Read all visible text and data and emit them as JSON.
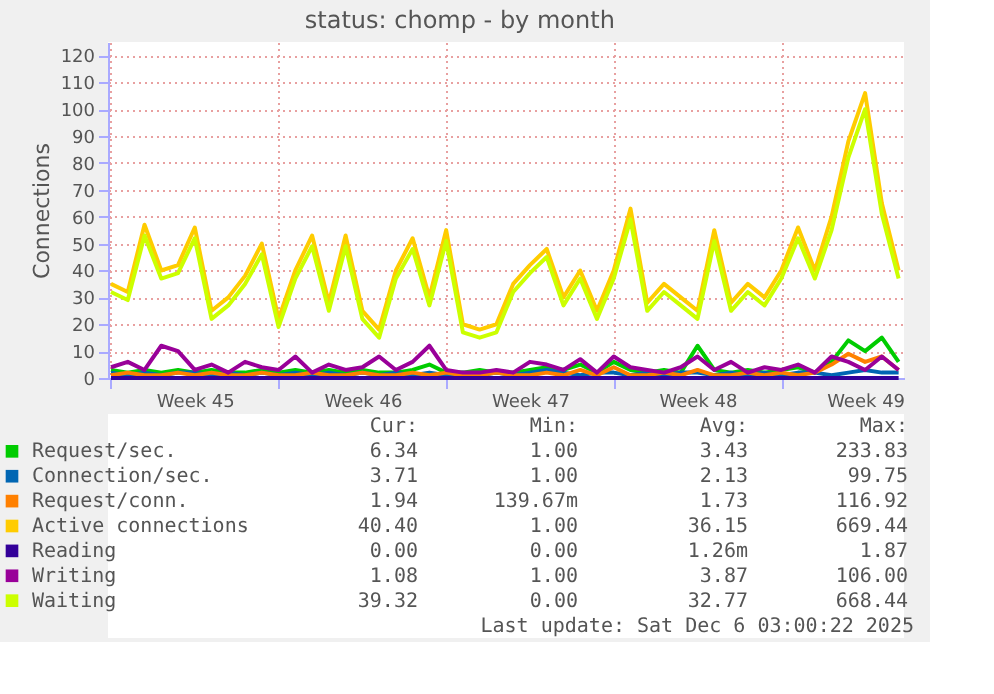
{
  "chart_data": {
    "type": "line",
    "title": "status: chomp - by month",
    "ylabel": "Connections",
    "x": [
      "2025-11-03T00:00",
      "2025-11-03T16:48",
      "2025-11-04T09:36",
      "2025-11-05T02:24",
      "2025-11-05T19:12",
      "2025-11-06T12:00",
      "2025-11-07T04:48",
      "2025-11-07T21:36",
      "2025-11-08T14:24",
      "2025-11-09T07:12",
      "2025-11-10T00:00",
      "2025-11-10T16:48",
      "2025-11-11T09:36",
      "2025-11-12T02:24",
      "2025-11-12T19:12",
      "2025-11-13T12:00",
      "2025-11-14T04:48",
      "2025-11-14T21:36",
      "2025-11-15T14:24",
      "2025-11-16T07:12",
      "2025-11-17T00:00",
      "2025-11-17T16:48",
      "2025-11-18T09:36",
      "2025-11-19T02:24",
      "2025-11-19T19:12",
      "2025-11-20T12:00",
      "2025-11-21T04:48",
      "2025-11-21T21:36",
      "2025-11-22T14:24",
      "2025-11-23T07:12",
      "2025-11-24T00:00",
      "2025-11-24T16:48",
      "2025-11-25T09:36",
      "2025-11-26T02:24",
      "2025-11-26T19:12",
      "2025-11-27T12:00",
      "2025-11-28T04:48",
      "2025-11-28T21:36",
      "2025-11-29T14:24",
      "2025-11-30T07:12",
      "2025-12-01T00:00",
      "2025-12-01T16:48",
      "2025-12-02T09:36",
      "2025-12-03T02:24",
      "2025-12-03T19:12",
      "2025-12-04T12:00",
      "2025-12-05T04:48",
      "2025-12-05T21:36"
    ],
    "xlim": [
      "2025-11-02T21:00",
      "2025-12-06T03:00"
    ],
    "xticks": [
      {
        "value": "2025-11-03",
        "label": null
      },
      {
        "value": "2025-11-06T12:00",
        "label": "Week 45"
      },
      {
        "value": "2025-11-10",
        "label": null
      },
      {
        "value": "2025-11-13T12:00",
        "label": "Week 46"
      },
      {
        "value": "2025-11-17",
        "label": null
      },
      {
        "value": "2025-11-20T12:00",
        "label": "Week 47"
      },
      {
        "value": "2025-11-24",
        "label": null
      },
      {
        "value": "2025-11-27T12:00",
        "label": "Week 48"
      },
      {
        "value": "2025-12-01",
        "label": null
      },
      {
        "value": "2025-12-04T12:00",
        "label": "Week 49"
      }
    ],
    "ylim": [
      0,
      125
    ],
    "yticks": [
      0,
      10,
      20,
      30,
      40,
      50,
      60,
      70,
      80,
      90,
      100,
      110,
      120
    ],
    "grid": true,
    "legend": "bottom",
    "line_style": "solid",
    "marker": "none",
    "series": [
      {
        "name": "Request/sec.",
        "color": "#00cc00",
        "values": [
          3,
          2,
          3,
          2,
          3,
          2,
          3,
          2,
          2,
          3,
          2,
          3,
          2,
          3,
          2,
          3,
          2,
          2,
          3,
          5,
          2,
          2,
          3,
          2,
          2,
          3,
          4,
          3,
          5,
          2,
          6,
          3,
          2,
          3,
          2,
          12,
          3,
          2,
          3,
          2,
          3,
          4,
          2,
          6,
          14,
          10,
          15,
          6
        ]
      },
      {
        "name": "Connection/sec.",
        "color": "#0066b3",
        "values": [
          2,
          1,
          2,
          1,
          2,
          2,
          1,
          2,
          1,
          2,
          1,
          2,
          1,
          2,
          1,
          2,
          1,
          2,
          1,
          2,
          1,
          2,
          1,
          2,
          1,
          2,
          3,
          2,
          1,
          2,
          2,
          1,
          2,
          1,
          2,
          2,
          1,
          2,
          1,
          2,
          1,
          2,
          2,
          1,
          2,
          3,
          2,
          2
        ]
      },
      {
        "name": "Request/conn.",
        "color": "#ff8000",
        "values": [
          1,
          2,
          1,
          1,
          2,
          1,
          2,
          1,
          1,
          2,
          1,
          1,
          2,
          1,
          1,
          2,
          1,
          1,
          2,
          1,
          2,
          1,
          1,
          2,
          1,
          1,
          2,
          1,
          3,
          1,
          4,
          1,
          1,
          2,
          1,
          3,
          1,
          1,
          2,
          1,
          2,
          1,
          2,
          5,
          9,
          6,
          8,
          3
        ]
      },
      {
        "name": "Active connections",
        "color": "#ffcc00",
        "values": [
          35,
          32,
          57,
          40,
          42,
          56,
          25,
          30,
          38,
          50,
          22,
          40,
          53,
          28,
          53,
          25,
          18,
          40,
          52,
          30,
          55,
          20,
          18,
          20,
          35,
          42,
          48,
          30,
          40,
          25,
          40,
          63,
          28,
          35,
          30,
          25,
          55,
          28,
          35,
          30,
          40,
          56,
          40,
          60,
          88,
          106,
          65,
          40
        ]
      },
      {
        "name": "Reading",
        "color": "#330099",
        "values": [
          0,
          0,
          0,
          0,
          0,
          0,
          0,
          0,
          0,
          0,
          0,
          0,
          0,
          0,
          0,
          0,
          0,
          0,
          0,
          0,
          0,
          0,
          0,
          0,
          0,
          0,
          0,
          0,
          0,
          0,
          0,
          0,
          0,
          0,
          0,
          0,
          0,
          0,
          0,
          0,
          0,
          0,
          0,
          0,
          0,
          0,
          0,
          0
        ]
      },
      {
        "name": "Writing",
        "color": "#990099",
        "values": [
          4,
          6,
          3,
          12,
          10,
          3,
          5,
          2,
          6,
          4,
          3,
          8,
          2,
          5,
          3,
          4,
          8,
          3,
          6,
          12,
          3,
          2,
          2,
          3,
          2,
          6,
          5,
          3,
          7,
          2,
          8,
          4,
          3,
          2,
          4,
          8,
          3,
          6,
          2,
          4,
          3,
          5,
          2,
          8,
          6,
          3,
          8,
          3
        ]
      },
      {
        "name": "Waiting",
        "color": "#ccff00",
        "values": [
          32,
          29,
          53,
          37,
          39,
          52,
          22,
          27,
          35,
          46,
          19,
          37,
          49,
          25,
          49,
          22,
          15,
          37,
          48,
          27,
          51,
          17,
          15,
          17,
          32,
          39,
          45,
          27,
          37,
          22,
          37,
          59,
          25,
          32,
          27,
          22,
          51,
          25,
          32,
          27,
          37,
          52,
          37,
          55,
          82,
          100,
          61,
          37
        ]
      }
    ],
    "annotations": [
      "Cur: Min: Avg: Max:",
      "6.34 1.00 3.43 233.83",
      "3.71 1.00 2.13 99.75",
      "1.94 139.67m 1.73 116.92",
      "40.40 1.00 36.15 669.44",
      "0.00 0.00 1.26m 1.87",
      "1.08 1.00 3.87 106.00",
      "39.32 0.00 32.77 668.44",
      "Last update: Sat Dec  6 03:00:22 2025"
    ]
  }
}
